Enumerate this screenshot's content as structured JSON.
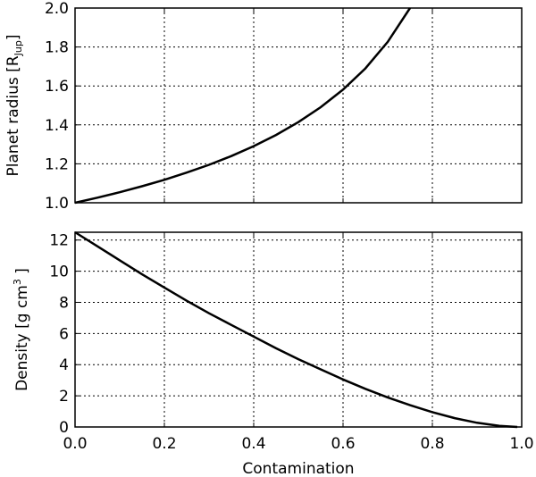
{
  "chart_data": [
    {
      "type": "line",
      "panel": "top",
      "ylabel_main": "Planet radius [R",
      "ylabel_sub": "Jup",
      "ylabel_end": "]",
      "xlim": [
        0.0,
        1.0
      ],
      "ylim": [
        1.0,
        2.0
      ],
      "xticks": [
        "0.0",
        "0.2",
        "0.4",
        "0.6",
        "0.8",
        "1.0"
      ],
      "yticks": [
        "1.0",
        "1.2",
        "1.4",
        "1.6",
        "1.8",
        "2.0"
      ],
      "grid": true,
      "series": [
        {
          "x": [
            0.0,
            0.05,
            0.1,
            0.15,
            0.2,
            0.25,
            0.3,
            0.35,
            0.4,
            0.45,
            0.5,
            0.55,
            0.6,
            0.65,
            0.7,
            0.75
          ],
          "y": [
            1.0,
            1.026,
            1.054,
            1.085,
            1.118,
            1.155,
            1.195,
            1.24,
            1.291,
            1.348,
            1.414,
            1.491,
            1.581,
            1.69,
            1.826,
            2.0
          ]
        }
      ]
    },
    {
      "type": "line",
      "panel": "bottom",
      "xlabel": "Contamination",
      "ylabel_main": "Density  [g cm",
      "ylabel_sup": "3",
      "ylabel_end": " ]",
      "xlim": [
        0.0,
        1.0
      ],
      "ylim": [
        0,
        12.5
      ],
      "xticks": [
        "0.0",
        "0.2",
        "0.4",
        "0.6",
        "0.8",
        "1.0"
      ],
      "yticks": [
        "0",
        "2",
        "4",
        "6",
        "8",
        "10",
        "12"
      ],
      "grid": true,
      "series": [
        {
          "x": [
            0.0,
            0.05,
            0.1,
            0.15,
            0.2,
            0.25,
            0.3,
            0.35,
            0.4,
            0.45,
            0.5,
            0.55,
            0.6,
            0.65,
            0.7,
            0.75,
            0.8,
            0.85,
            0.9,
            0.95,
            0.99
          ],
          "y": [
            12.5,
            11.6,
            10.7,
            9.8,
            8.95,
            8.1,
            7.3,
            6.55,
            5.8,
            5.05,
            4.35,
            3.7,
            3.05,
            2.45,
            1.9,
            1.4,
            0.95,
            0.57,
            0.27,
            0.07,
            0.0
          ]
        }
      ]
    }
  ]
}
